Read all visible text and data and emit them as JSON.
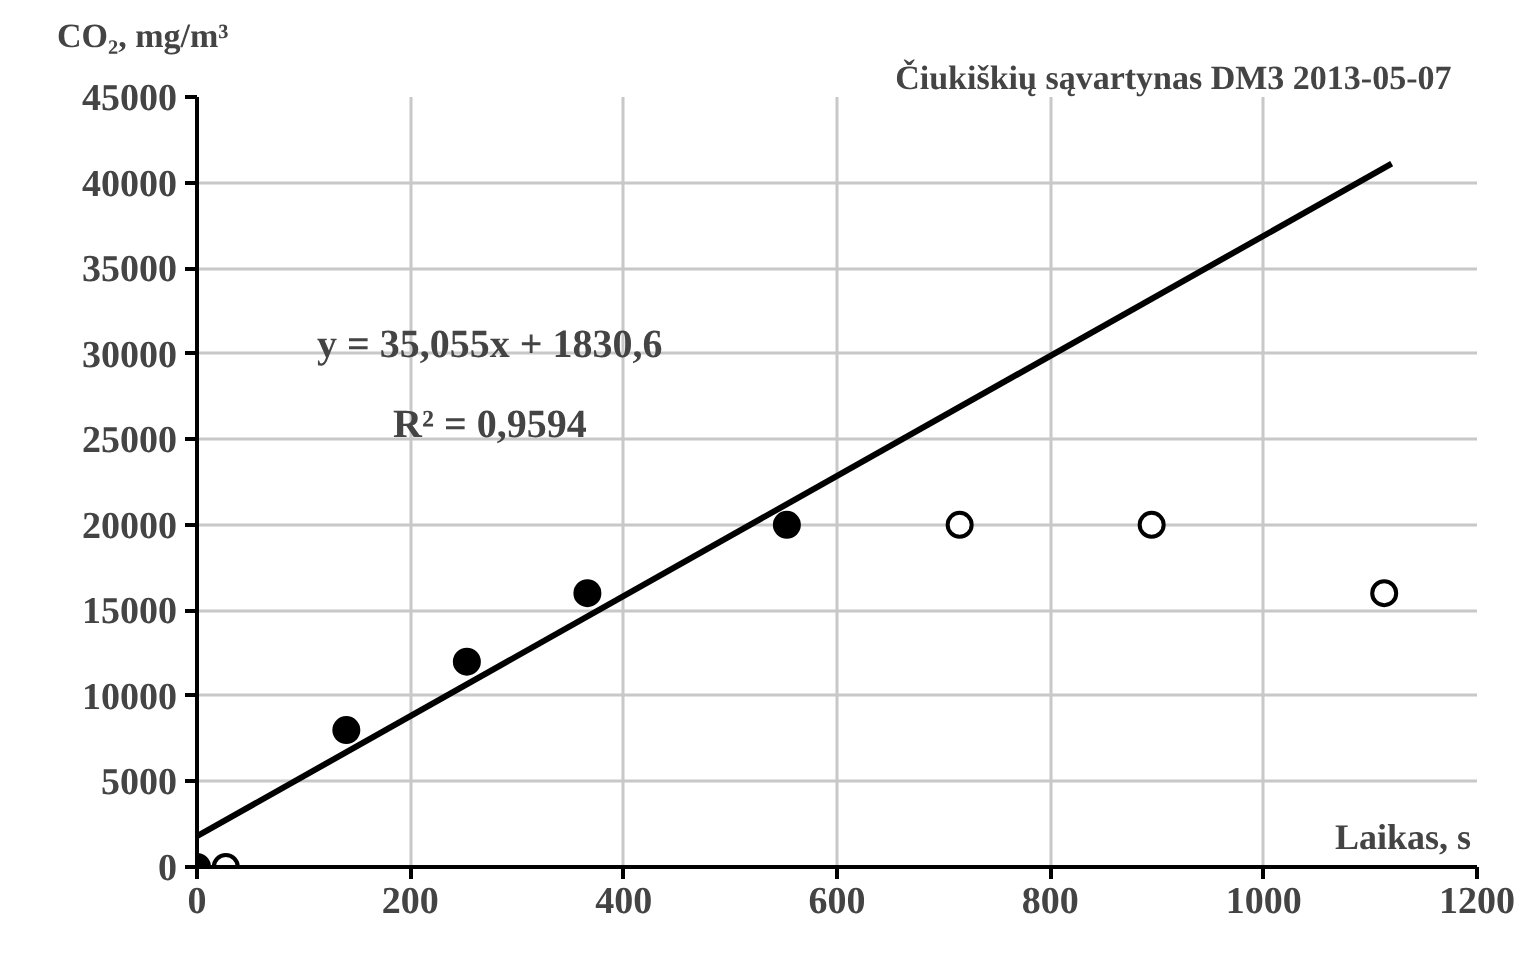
{
  "chart_data": {
    "type": "scatter",
    "title": "Čiukiškių sąvartynas  DM3   2013-05-07",
    "xlabel": "Laikas, s",
    "ylabel": "CO₂, mg/m³",
    "annotations": [
      "y = 35,055x + 1830,6",
      "R² = 0,9594"
    ],
    "series": [
      {
        "color": "#000000",
        "x": [
          0,
          140,
          253,
          366,
          553
        ],
        "values": [
          0,
          8000,
          12000,
          16000,
          20000
        ]
      },
      {
        "color": "#ffffff",
        "x": [
          27,
          715,
          895,
          1113
        ],
        "values": [
          0,
          20000,
          20000,
          16000
        ]
      },
      {
        "type": "line",
        "marker": "none",
        "color": "#000000",
        "x": [
          0,
          1120
        ],
        "values": [
          1800,
          41100
        ]
      }
    ],
    "xlim": [
      0,
      1200
    ],
    "ylim": [
      0,
      45000
    ],
    "xticks": [
      0,
      200,
      400,
      600,
      800,
      1000,
      1200
    ],
    "yticks": [
      0,
      5000,
      10000,
      15000,
      20000,
      25000,
      30000,
      35000,
      40000,
      45000
    ],
    "grid": true,
    "marker": "circle"
  }
}
